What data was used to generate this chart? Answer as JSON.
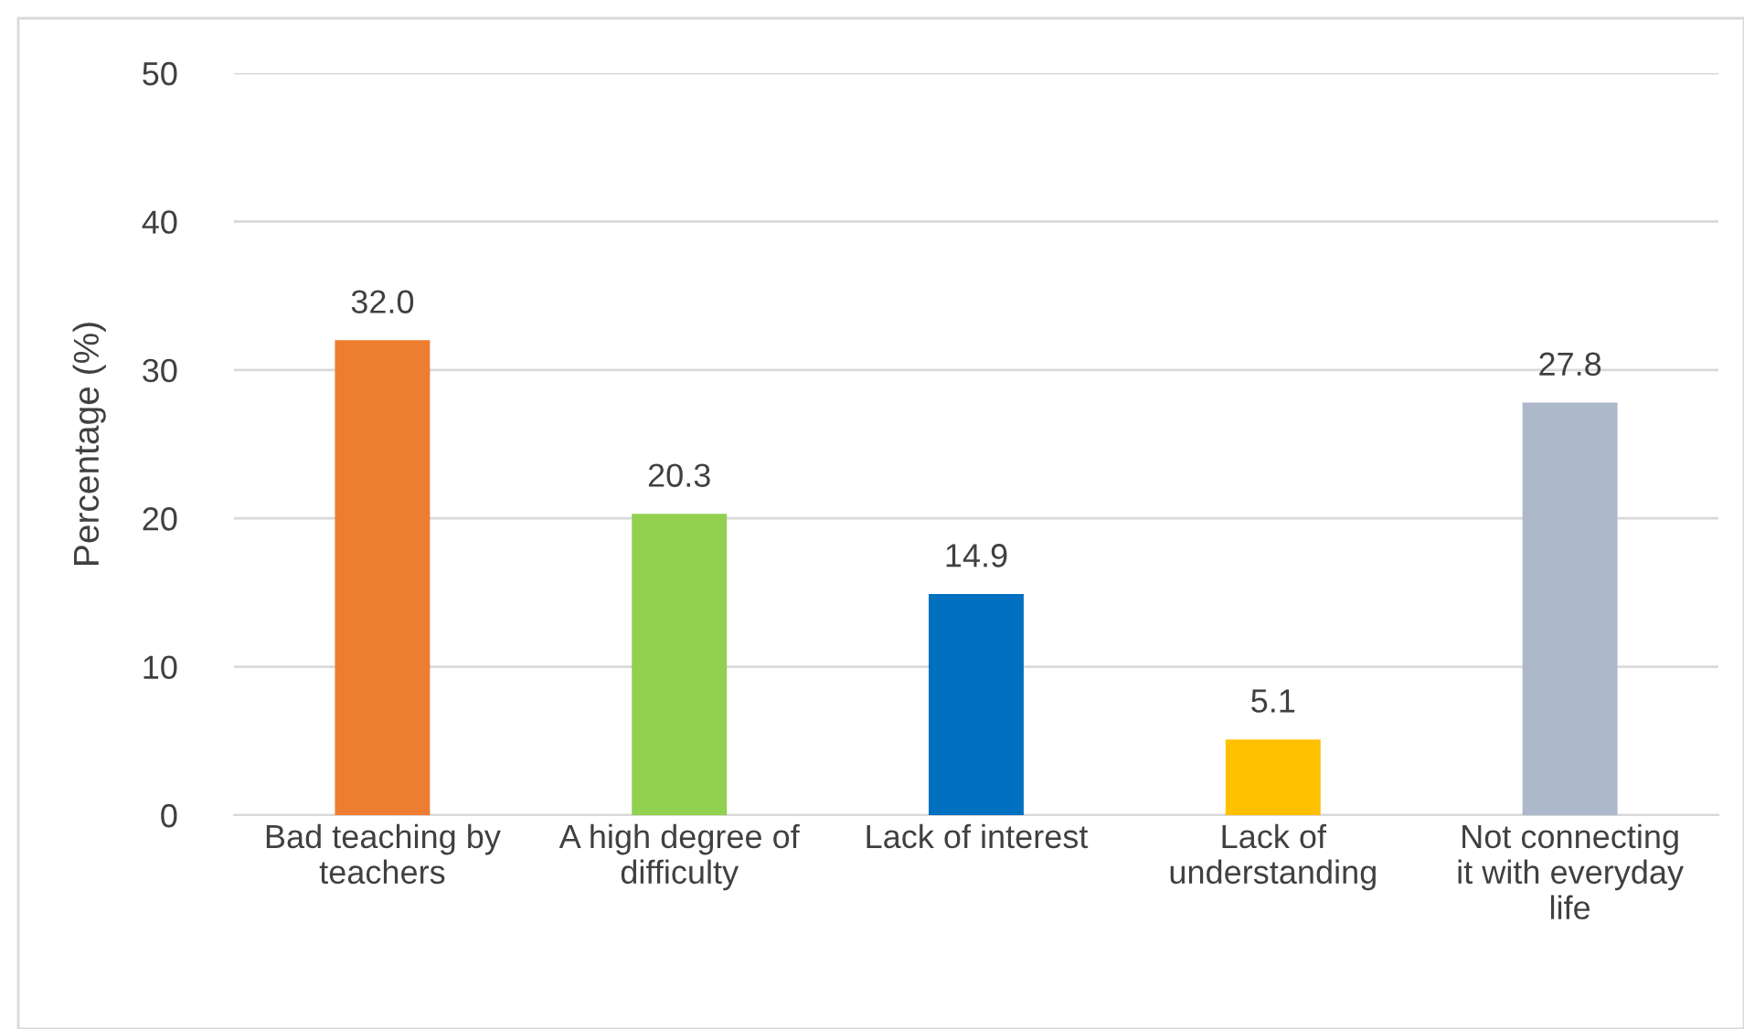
{
  "chart_data": {
    "type": "bar",
    "ylabel": "Percentage (%)",
    "categories": [
      "Bad teaching by teachers",
      "A high degree of difficulty",
      "Lack of interest",
      "Lack of understanding",
      "Not connecting it with everyday life"
    ],
    "values": [
      32.0,
      20.3,
      14.9,
      5.1,
      27.8
    ],
    "colors": [
      "#ed7d31",
      "#92d050",
      "#0070c0",
      "#ffc000",
      "#adb9ca"
    ],
    "value_labels": [
      "32.0",
      "20.3",
      "14.9",
      "5.1",
      "27.8"
    ],
    "ylim": [
      0,
      50
    ],
    "yticks": [
      0,
      10,
      20,
      30,
      40,
      50
    ],
    "grid": "y",
    "legend": false
  }
}
